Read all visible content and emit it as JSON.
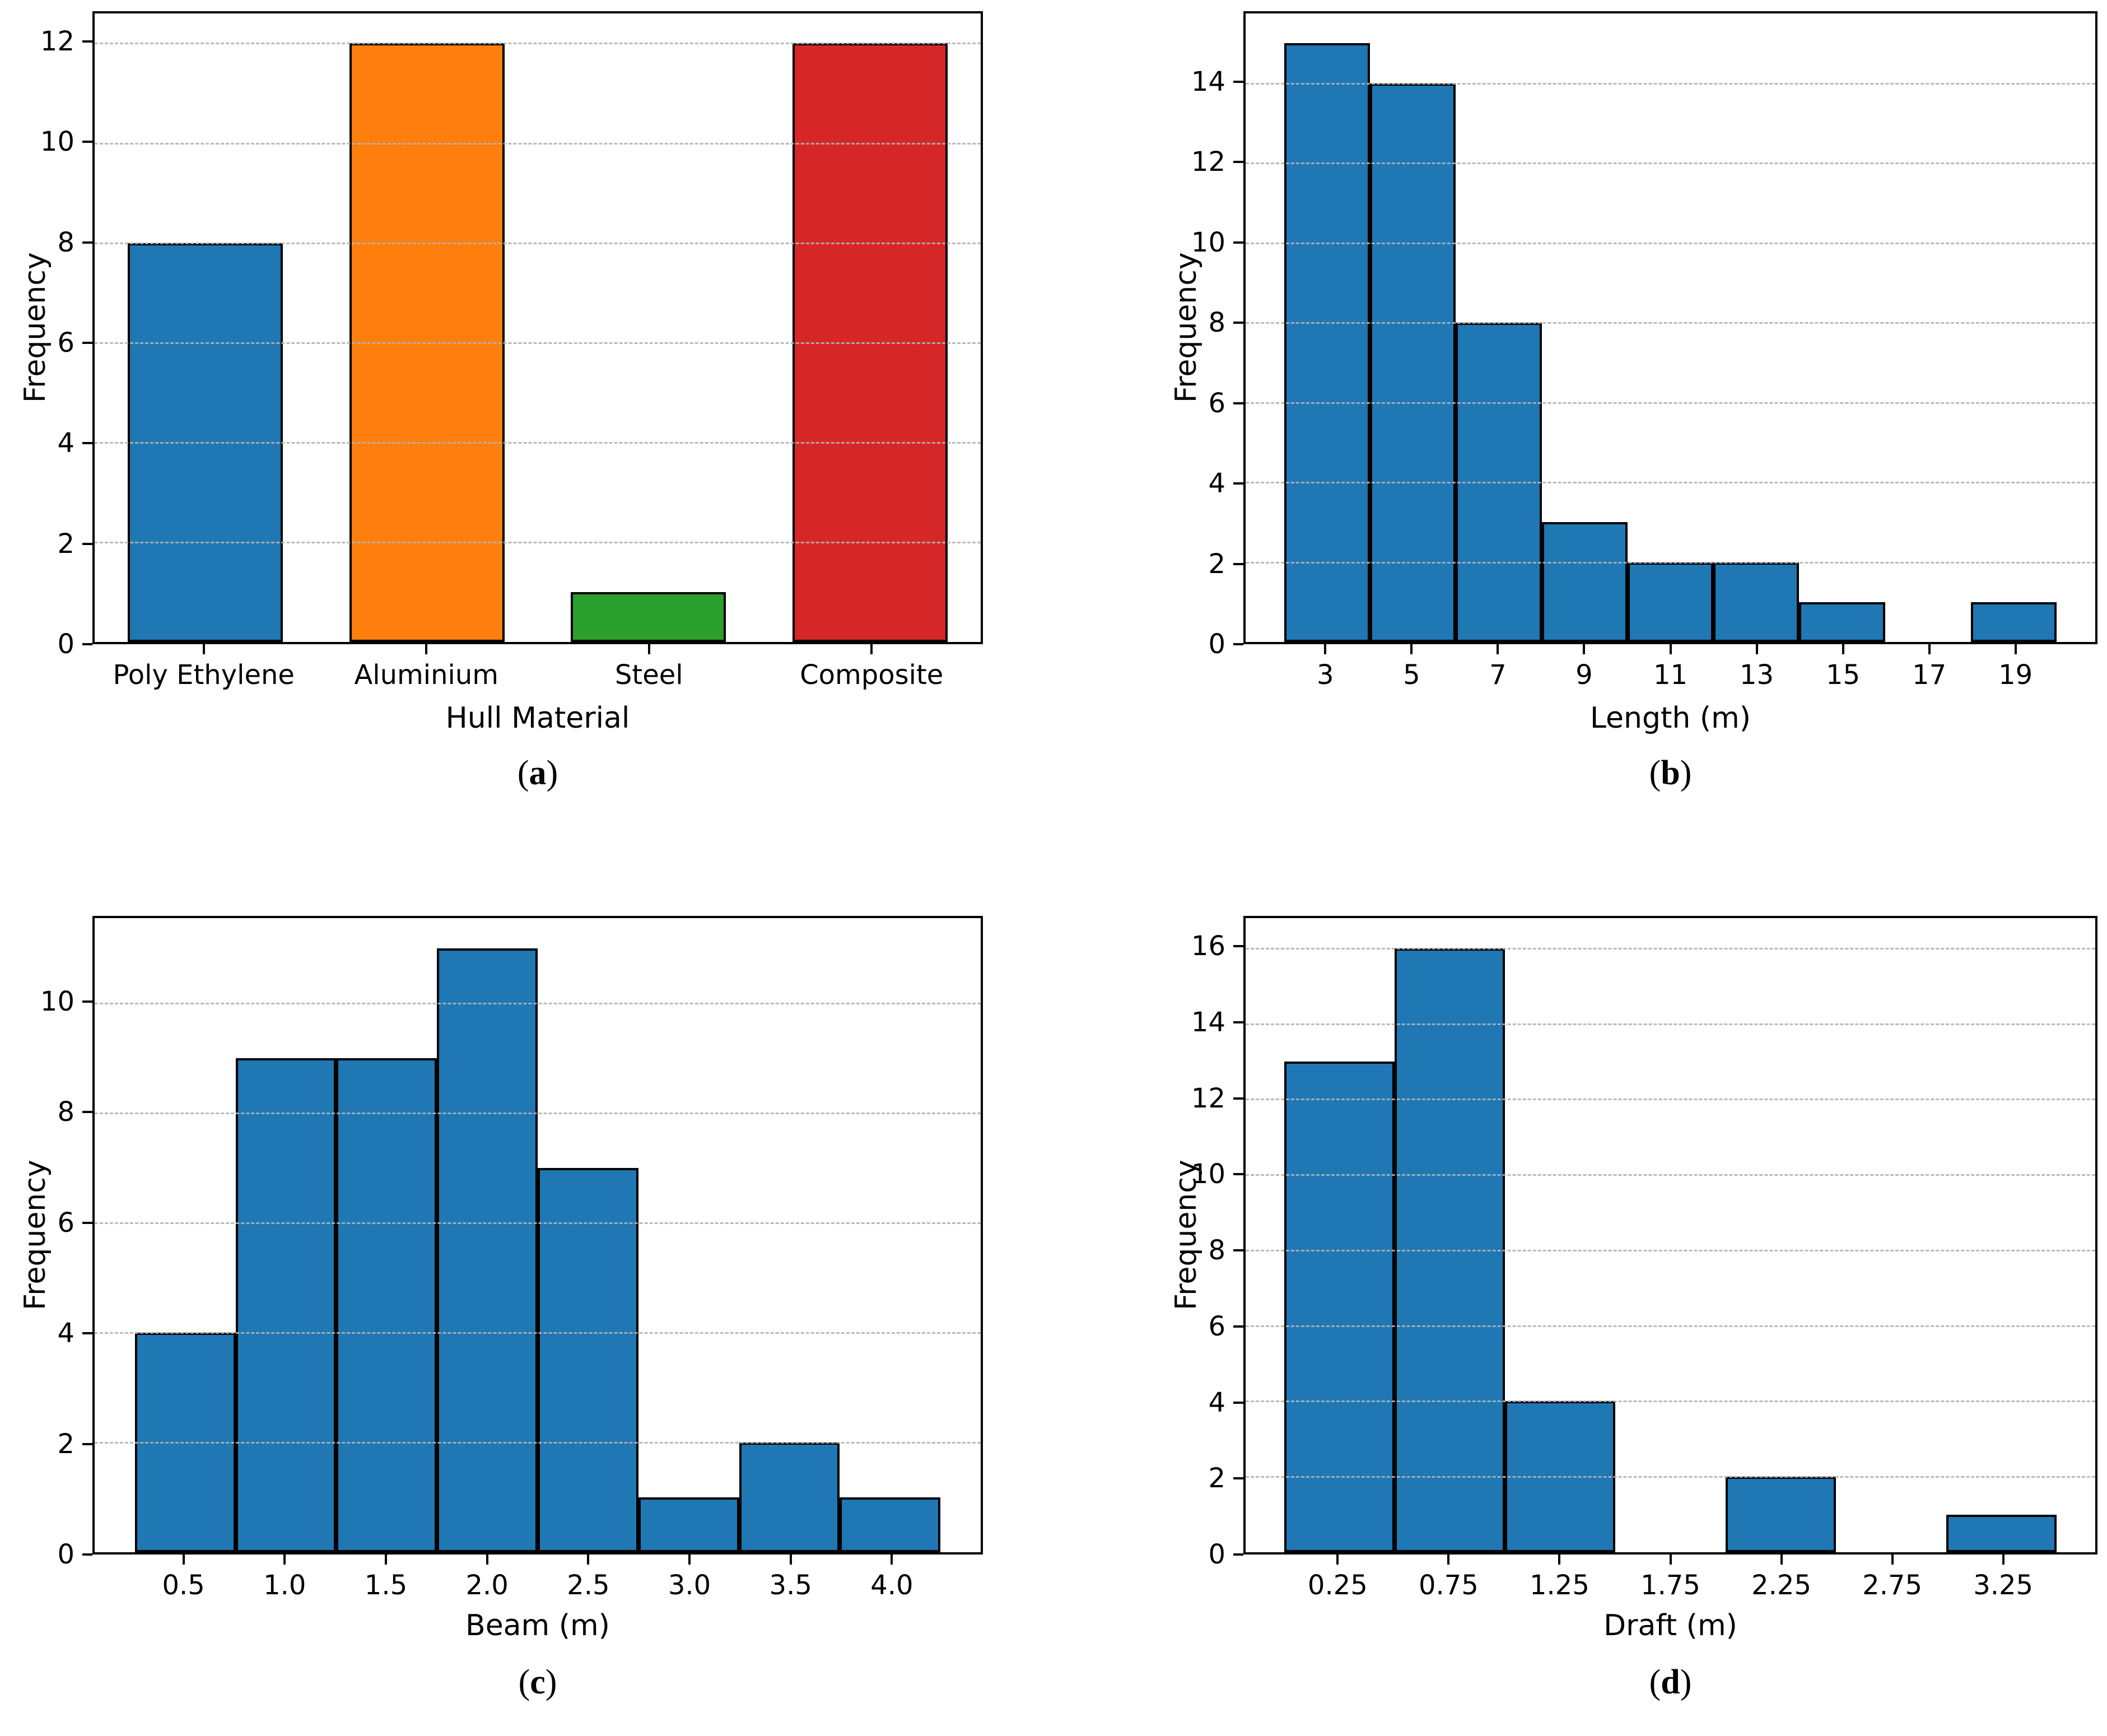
{
  "figure": {
    "background": "#ffffff",
    "grid_color": "#b2b2b2",
    "spine_color": "#000000"
  },
  "chart_data": [
    {
      "id": "a",
      "type": "bar",
      "title": "",
      "xlabel": "Hull Material",
      "ylabel": "Frequency",
      "categories": [
        "Poly Ethylene",
        "Aluminium",
        "Steel",
        "Composite"
      ],
      "values": [
        8,
        12,
        1,
        12
      ],
      "bar_colors": [
        "#1f77b4",
        "#ff7f0e",
        "#2ca02c",
        "#d62728"
      ],
      "bar_edge_color": "#000000",
      "bar_width": 0.7,
      "xlim": [
        -0.5,
        3.5
      ],
      "ylim": [
        0,
        12.6
      ],
      "yticks": [
        0,
        2,
        4,
        6,
        8,
        10,
        12
      ],
      "grid": "horizontal-dashed",
      "legend": "none",
      "caption": {
        "open": "(",
        "letter": "a",
        "close": ")"
      }
    },
    {
      "id": "b",
      "type": "histogram",
      "title": "",
      "xlabel": "Length (m)",
      "ylabel": "Frequency",
      "bins": {
        "start": 2,
        "width": 2
      },
      "values": [
        15,
        14,
        8,
        3,
        2,
        2,
        1,
        0,
        1
      ],
      "bar_color": "#1f77b4",
      "bar_edge_color": "#000000",
      "xlim": [
        1.1,
        20.9
      ],
      "xtick_labels": [
        "3",
        "5",
        "7",
        "9",
        "11",
        "13",
        "15",
        "17",
        "19"
      ],
      "ylim": [
        0,
        15.75
      ],
      "yticks": [
        0,
        2,
        4,
        6,
        8,
        10,
        12,
        14
      ],
      "grid": "horizontal-dashed",
      "legend": "none",
      "caption": {
        "open": "(",
        "letter": "b",
        "close": ")"
      }
    },
    {
      "id": "c",
      "type": "histogram",
      "title": "",
      "xlabel": "Beam (m)",
      "ylabel": "Frequency",
      "bins": {
        "start": 0.25,
        "width": 0.5
      },
      "values": [
        4,
        9,
        9,
        11,
        7,
        1,
        2,
        1
      ],
      "bar_color": "#1f77b4",
      "bar_edge_color": "#000000",
      "xlim": [
        0.05,
        4.45
      ],
      "xtick_labels": [
        "0.5",
        "1.0",
        "1.5",
        "2.0",
        "2.5",
        "3.0",
        "3.5",
        "4.0"
      ],
      "ylim": [
        0,
        11.55
      ],
      "yticks": [
        0,
        2,
        4,
        6,
        8,
        10
      ],
      "grid": "horizontal-dashed",
      "legend": "none",
      "caption": {
        "open": "(",
        "letter": "c",
        "close": ")"
      }
    },
    {
      "id": "d",
      "type": "histogram",
      "title": "",
      "xlabel": "Draft (m)",
      "ylabel": "Frequency",
      "bins": {
        "start": 0,
        "width": 0.5
      },
      "values": [
        13,
        16,
        4,
        0,
        2,
        0,
        1
      ],
      "bar_color": "#1f77b4",
      "bar_edge_color": "#000000",
      "xlim": [
        -0.175,
        3.675
      ],
      "xtick_labels": [
        "0.25",
        "0.75",
        "1.25",
        "1.75",
        "2.25",
        "2.75",
        "3.25"
      ],
      "ylim": [
        0,
        16.8
      ],
      "yticks": [
        0,
        2,
        4,
        6,
        8,
        10,
        12,
        14,
        16
      ],
      "grid": "horizontal-dashed",
      "legend": "none",
      "caption": {
        "open": "(",
        "letter": "d",
        "close": ")"
      }
    }
  ]
}
